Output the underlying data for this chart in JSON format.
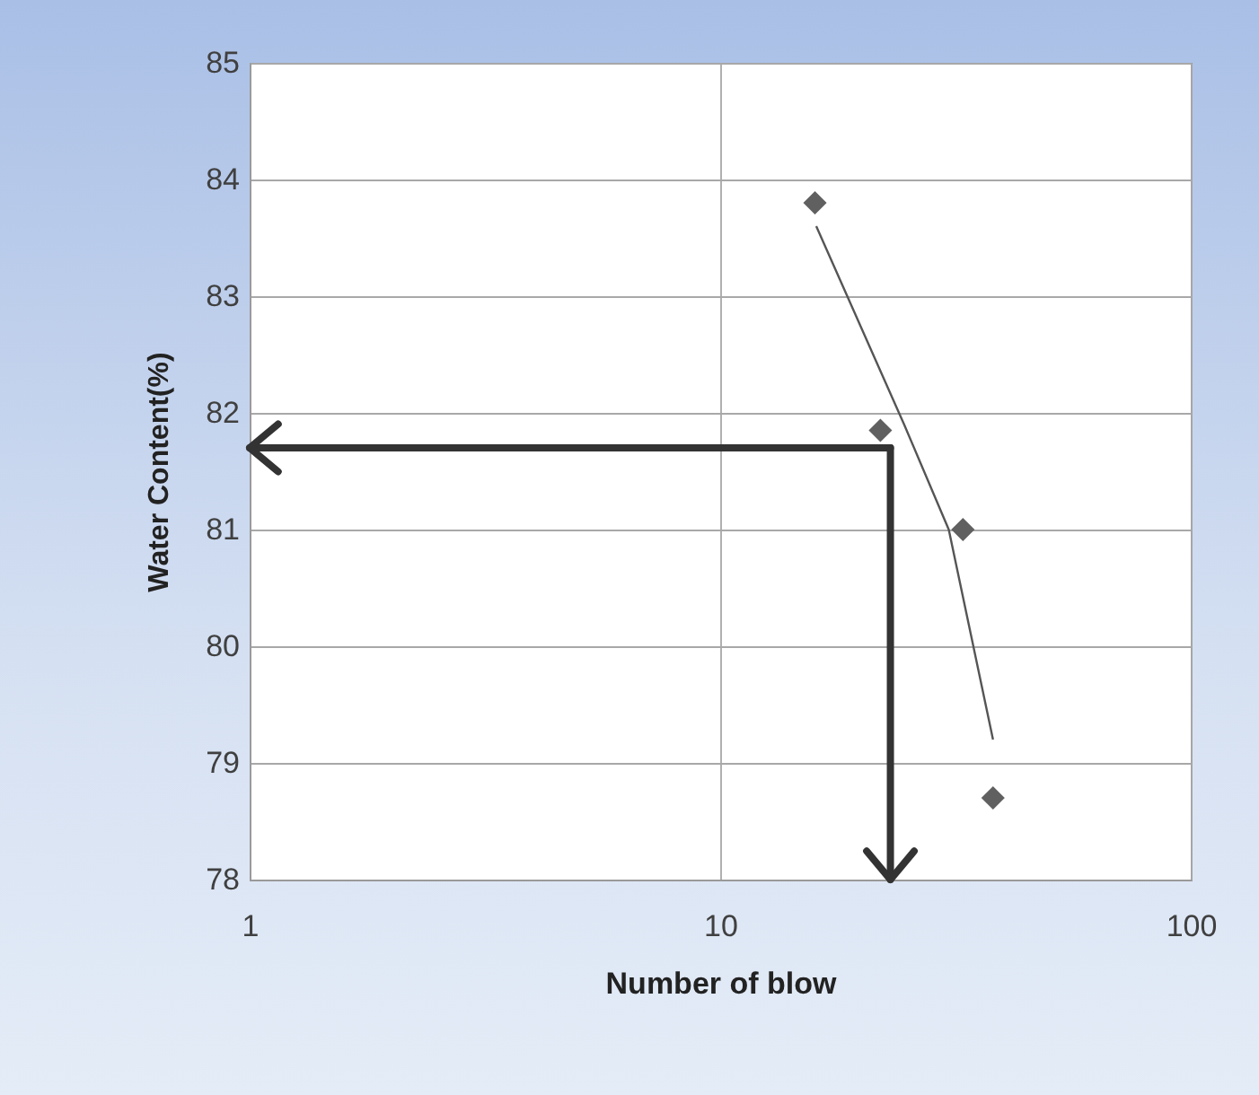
{
  "chart_data": {
    "type": "scatter",
    "xlabel": "Number of blow",
    "ylabel": "Water Content(%)",
    "log": "x",
    "xlim": [
      1,
      100
    ],
    "xticks": [
      1,
      10,
      100
    ],
    "ylim": [
      78,
      85
    ],
    "yticks": [
      78,
      79,
      80,
      81,
      82,
      83,
      84,
      85
    ],
    "grid": true,
    "marker": "diamond",
    "ref_lines": [
      {
        "axis": "y",
        "value": 81.7,
        "color": "#333333"
      },
      {
        "axis": "x",
        "value": 23,
        "color": "#333333"
      }
    ],
    "series": [
      {
        "color": "#606060",
        "x": [
          15.9,
          21.9,
          32.8,
          38.0
        ],
        "values": [
          83.8,
          81.85,
          81.0,
          78.7
        ]
      },
      {
        "type": "line",
        "color": "#555555",
        "marker": "none",
        "x": [
          16,
          24.6,
          30.6,
          38
        ],
        "values": [
          83.6,
          81.9,
          81.0,
          79.2
        ]
      }
    ]
  }
}
